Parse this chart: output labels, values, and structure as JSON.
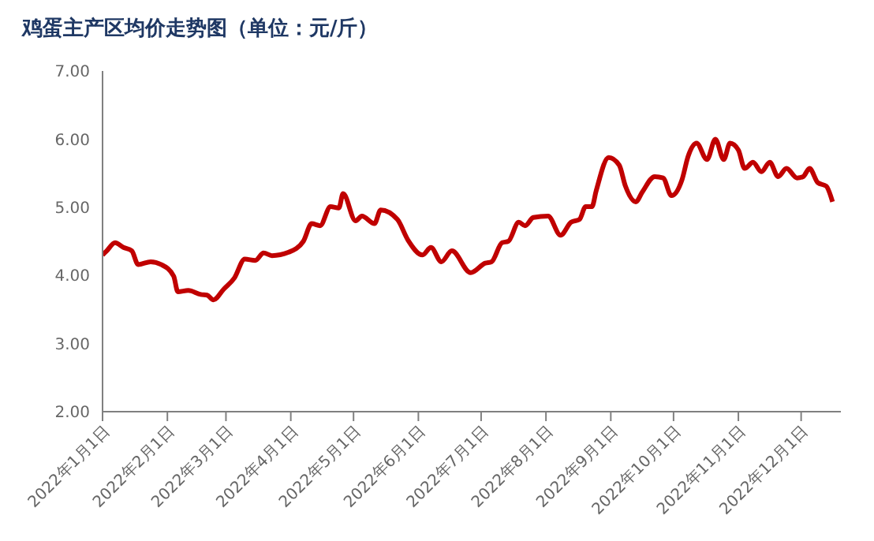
{
  "chart_data": {
    "type": "line",
    "title": "鸡蛋主产区均价走势图（单位：元/斤）",
    "x": [
      "2022-01-01",
      "2022-01-03",
      "2022-01-07",
      "2022-01-11",
      "2022-01-15",
      "2022-01-18",
      "2022-01-24",
      "2022-01-29",
      "2022-02-04",
      "2022-02-06",
      "2022-02-11",
      "2022-02-17",
      "2022-02-20",
      "2022-02-23",
      "2022-02-28",
      "2022-03-05",
      "2022-03-10",
      "2022-03-15",
      "2022-03-19",
      "2022-03-23",
      "2022-03-31",
      "2022-04-07",
      "2022-04-11",
      "2022-04-15",
      "2022-04-20",
      "2022-04-24",
      "2022-04-26",
      "2022-05-02",
      "2022-05-05",
      "2022-05-11",
      "2022-05-14",
      "2022-05-22",
      "2022-05-27",
      "2022-06-03",
      "2022-06-07",
      "2022-06-12",
      "2022-06-17",
      "2022-06-26",
      "2022-07-03",
      "2022-07-06",
      "2022-07-11",
      "2022-07-14",
      "2022-07-19",
      "2022-07-22",
      "2022-07-26",
      "2022-08-02",
      "2022-08-08",
      "2022-08-13",
      "2022-08-17",
      "2022-08-20",
      "2022-08-23",
      "2022-08-25",
      "2022-08-31",
      "2022-09-05",
      "2022-09-08",
      "2022-09-13",
      "2022-09-16",
      "2022-09-22",
      "2022-09-26",
      "2022-09-30",
      "2022-10-05",
      "2022-10-08",
      "2022-10-12",
      "2022-10-17",
      "2022-10-21",
      "2022-10-25",
      "2022-10-28",
      "2022-11-01",
      "2022-11-04",
      "2022-11-08",
      "2022-11-12",
      "2022-11-16",
      "2022-11-20",
      "2022-11-24",
      "2022-11-29",
      "2022-12-02",
      "2022-12-05",
      "2022-12-09",
      "2022-12-13",
      "2022-12-16"
    ],
    "series": [
      {
        "color": "#c00000",
        "values": [
          4.3,
          4.36,
          4.48,
          4.41,
          4.36,
          4.16,
          4.2,
          4.16,
          3.99,
          3.76,
          3.78,
          3.72,
          3.71,
          3.64,
          3.8,
          3.96,
          4.24,
          4.22,
          4.33,
          4.29,
          4.34,
          4.5,
          4.76,
          4.73,
          5.01,
          4.99,
          5.2,
          4.8,
          4.87,
          4.76,
          4.96,
          4.82,
          4.52,
          4.3,
          4.41,
          4.2,
          4.36,
          4.04,
          4.18,
          4.2,
          4.48,
          4.5,
          4.78,
          4.73,
          4.85,
          4.87,
          4.59,
          4.78,
          4.82,
          5.01,
          5.01,
          5.24,
          5.73,
          5.62,
          5.31,
          5.08,
          5.22,
          5.45,
          5.43,
          5.17,
          5.4,
          5.75,
          5.94,
          5.7,
          6.0,
          5.7,
          5.94,
          5.84,
          5.57,
          5.66,
          5.52,
          5.66,
          5.45,
          5.57,
          5.43,
          5.45,
          5.57,
          5.36,
          5.31,
          5.08
        ]
      }
    ],
    "xlim": [
      "2022-01-01",
      "2022-12-20"
    ],
    "xticks": [
      {
        "value": "2022-01-01",
        "label": "2022年1月1日"
      },
      {
        "value": "2022-02-01",
        "label": "2022年2月1日"
      },
      {
        "value": "2022-03-01",
        "label": "2022年3月1日"
      },
      {
        "value": "2022-04-01",
        "label": "2022年4月1日"
      },
      {
        "value": "2022-05-01",
        "label": "2022年5月1日"
      },
      {
        "value": "2022-06-01",
        "label": "2022年6月1日"
      },
      {
        "value": "2022-07-01",
        "label": "2022年7月1日"
      },
      {
        "value": "2022-08-01",
        "label": "2022年8月1日"
      },
      {
        "value": "2022-09-01",
        "label": "2022年9月1日"
      },
      {
        "value": "2022-10-01",
        "label": "2022年10月1日"
      },
      {
        "value": "2022-11-01",
        "label": "2022年11月1日"
      },
      {
        "value": "2022-12-01",
        "label": "2022年12月1日"
      }
    ],
    "ylim": [
      2,
      7
    ],
    "yticks": [
      {
        "value": 2,
        "label": "2.00"
      },
      {
        "value": 3,
        "label": "3.00"
      },
      {
        "value": 4,
        "label": "4.00"
      },
      {
        "value": 5,
        "label": "5.00"
      },
      {
        "value": 6,
        "label": "6.00"
      },
      {
        "value": 7,
        "label": "7.00"
      }
    ],
    "grid": false,
    "legend": false,
    "marker": "none",
    "line_style": "solid"
  }
}
